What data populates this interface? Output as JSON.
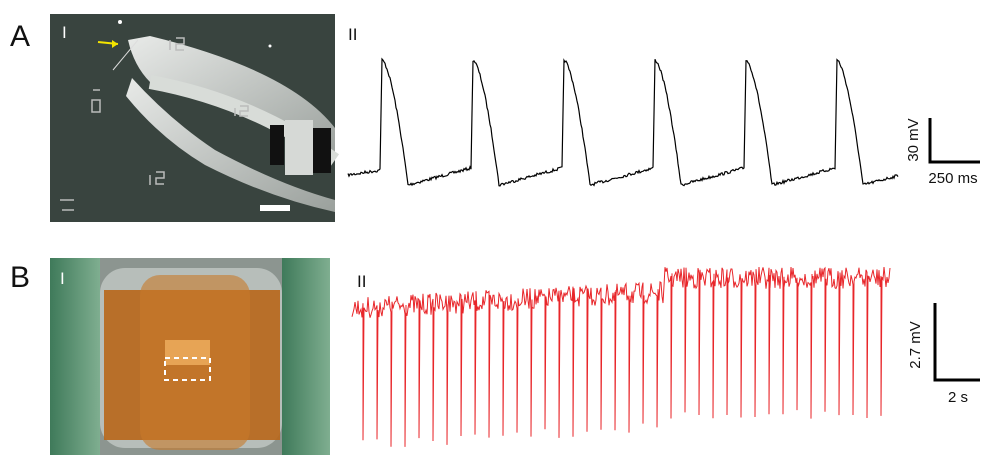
{
  "panel_a": {
    "label": "A",
    "photo_label": "I",
    "trace_label": "II",
    "scale_y": "30 mV",
    "scale_x": "250 ms"
  },
  "panel_b": {
    "label": "B",
    "photo_label": "I",
    "trace_label": "II",
    "scale_y": "2.7 mV",
    "scale_x": "2 s"
  }
}
